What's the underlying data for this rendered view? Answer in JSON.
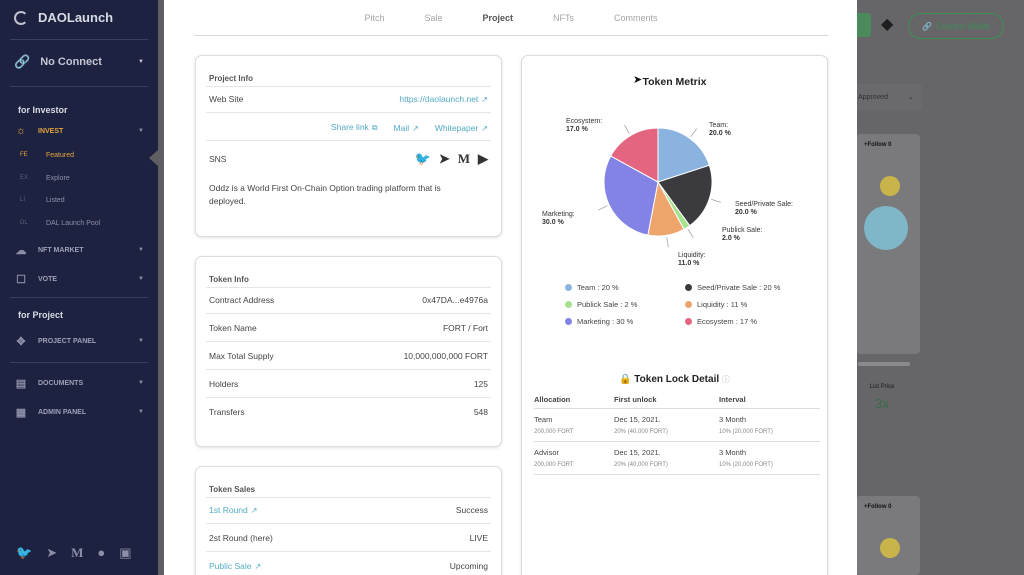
{
  "sidebar": {
    "app_name": "DAOLaunch",
    "connect": "No Connect",
    "for_investor": "for Investor",
    "invest": "INVEST",
    "sub_items": [
      {
        "abbr": "FE",
        "label": "Featured"
      },
      {
        "abbr": "EX",
        "label": "Explore"
      },
      {
        "abbr": "LI",
        "label": "Listed"
      },
      {
        "abbr": "DL",
        "label": "DAL Launch Pool"
      }
    ],
    "nft_market": "NFT MARKET",
    "vote": "VOTE",
    "for_project": "for Project",
    "project_panel": "PROJECT PANEL",
    "documents": "DOCUMENTS",
    "admin_panel": "ADMIN PANEL"
  },
  "background": {
    "connect_wallet": "Connect Wallet",
    "approved": "Approved",
    "follow": "+Follow",
    "follow_count": "0",
    "list_price_label": "List Price",
    "list_price_value": "3x"
  },
  "tabs": [
    "Pitch",
    "Sale",
    "Project",
    "NFTs",
    "Comments"
  ],
  "active_tab": "Project",
  "project_info": {
    "title": "Project Info",
    "website_label": "Web Site",
    "website_value": "https://daolaunch.net",
    "share_link": "Share link",
    "mail": "Mail",
    "whitepaper": "Whitepaper",
    "sns_label": "SNS",
    "description": "Oddz is a World First On-Chain Option trading platform that is deployed."
  },
  "token_info": {
    "title": "Token Info",
    "rows": [
      {
        "label": "Contract Address",
        "value": "0x47DA...e4976a"
      },
      {
        "label": "Token Name",
        "value": "FORT / Fort"
      },
      {
        "label": "Max Total Supply",
        "value": "10,000,000,000 FORT"
      },
      {
        "label": "Holders",
        "value": "125"
      },
      {
        "label": "Transfers",
        "value": "548"
      }
    ]
  },
  "token_sales": {
    "title": "Token Sales",
    "rows": [
      {
        "label": "1st Round",
        "value": "Success"
      },
      {
        "label": "2st Round (here)",
        "value": "LIVE"
      },
      {
        "label": "Public Sale",
        "value": "Upcoming"
      }
    ]
  },
  "token_metrix": {
    "title": "Token Metrix",
    "slices": [
      {
        "name": "Team",
        "pct": "20.0 %",
        "legend": "Team : 20 %",
        "value": 20,
        "color": "#8bb3e0"
      },
      {
        "name": "Seed/Private Sale:",
        "pct": "20.0 %",
        "legend": "Seed/Private Sale : 20 %",
        "value": 20,
        "color": "#3a3a3f"
      },
      {
        "name": "Publick Sale:",
        "pct": "2.0 %",
        "legend": "Publick Sale : 2 %",
        "value": 2,
        "color": "#a6e18f"
      },
      {
        "name": "Liquidity:",
        "pct": "11.0 %",
        "legend": "Liquidity : 11 %",
        "value": 11,
        "color": "#eda56b"
      },
      {
        "name": "Marketing:",
        "pct": "30.0 %",
        "legend": "Marketing : 30 %",
        "value": 30,
        "color": "#8383e6"
      },
      {
        "name": "Ecosystem:",
        "pct": "17.0 %",
        "legend": "Ecosystem : 17 %",
        "value": 17,
        "color": "#e4657f"
      }
    ]
  },
  "token_lock": {
    "title": "Token Lock Detail",
    "headers": [
      "Allocation",
      "First unlock",
      "Interval"
    ],
    "rows": [
      {
        "alloc": "Team",
        "alloc_sub": "200,000 FORT",
        "first": "Dec 15, 2021.",
        "first_sub": "20% (40,000 FORT)",
        "interval": "3 Month",
        "interval_sub": "10% (20,000 FORT)"
      },
      {
        "alloc": "Advisor",
        "alloc_sub": "200,000 FORT",
        "first": "Dec 15, 2021.",
        "first_sub": "20% (40,000 FORT)",
        "interval": "3 Month",
        "interval_sub": "10% (20,000 FORT)"
      }
    ]
  }
}
